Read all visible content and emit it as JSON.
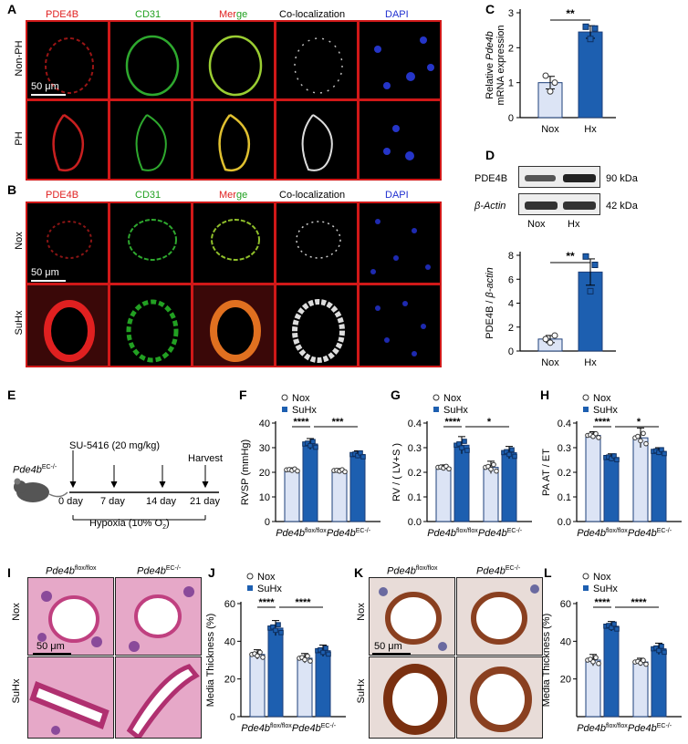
{
  "panels": [
    "A",
    "B",
    "C",
    "D",
    "E",
    "F",
    "G",
    "H",
    "I",
    "J",
    "K",
    "L"
  ],
  "channels": [
    "PDE4B",
    "CD31",
    "Merge",
    "Co-localization",
    "DAPI"
  ],
  "channel_colors": {
    "PDE4B": "#e02020",
    "CD31": "#1fa01f",
    "Merge": "#e02020",
    "Merge_ge": "#1fa01f",
    "Co-localization": "#222222",
    "DAPI": "#2030d0"
  },
  "merge_parts": [
    "Mer",
    "ge"
  ],
  "panelA_rows": [
    "Non-PH",
    "PH"
  ],
  "panelB_rows": [
    "Nox",
    "SuHx"
  ],
  "scale_bar": "50 μm",
  "colors": {
    "nox_fill": "#dce4f5",
    "suhx_fill": "#1d5fb0",
    "frame_red": "#d01818"
  },
  "chart_data": [
    {
      "panel": "C",
      "type": "bar",
      "categories": [
        "Nox",
        "Hx"
      ],
      "values": [
        1.0,
        2.45
      ],
      "errors": [
        0.18,
        0.18
      ],
      "points": [
        [
          1.2,
          0.75,
          1.0
        ],
        [
          2.6,
          2.25,
          2.55
        ]
      ],
      "ylabel_parts": [
        "Relative ",
        "Pde4b"
      ],
      "ylabel2": "mRNA expression",
      "yticks": [
        0,
        1,
        2,
        3
      ],
      "ylim": [
        0,
        3
      ],
      "significance": "**"
    },
    {
      "panel": "D",
      "type": "bar",
      "categories": [
        "Nox",
        "Hx"
      ],
      "values": [
        1.0,
        6.6
      ],
      "errors": [
        0.3,
        1.1
      ],
      "points": [
        [
          1.0,
          0.7,
          1.3
        ],
        [
          7.9,
          5.0,
          7.2
        ]
      ],
      "ylabel_parts": [
        "PDE4B / ",
        "β-actin"
      ],
      "yticks": [
        0,
        2,
        4,
        6,
        8
      ],
      "ylim": [
        0,
        8
      ],
      "significance": "**"
    },
    {
      "panel": "F",
      "type": "bar",
      "ylabel": "RVSP (mmHg)",
      "yticks": [
        0,
        10,
        20,
        30,
        40
      ],
      "ylim": [
        0,
        40
      ],
      "groups": [
        "Pde4b^flox/flox",
        "Pde4b^EC-/-"
      ],
      "series": [
        {
          "name": "Nox",
          "values": [
            21,
            20.7
          ]
        },
        {
          "name": "SuHx",
          "values": [
            31.5,
            27.2
          ]
        }
      ],
      "errors": [
        [
          0.8,
          0.8
        ],
        [
          2.2,
          1.5
        ]
      ],
      "significance": [
        "****",
        "***"
      ]
    },
    {
      "panel": "G",
      "type": "bar",
      "ylabel": "RV / ( LV+S )",
      "yticks": [
        0.0,
        0.1,
        0.2,
        0.3,
        0.4
      ],
      "ylim": [
        0,
        0.4
      ],
      "groups": [
        "Pde4b^flox/flox",
        "Pde4b^EC-/-"
      ],
      "series": [
        {
          "name": "Nox",
          "values": [
            0.22,
            0.22
          ]
        },
        {
          "name": "SuHx",
          "values": [
            0.31,
            0.28
          ]
        }
      ],
      "errors": [
        [
          0.01,
          0.025
        ],
        [
          0.035,
          0.025
        ]
      ],
      "significance": [
        "****",
        "*"
      ]
    },
    {
      "panel": "H",
      "type": "bar",
      "ylabel": "PA AT / ET",
      "yticks": [
        0.0,
        0.1,
        0.2,
        0.3,
        0.4
      ],
      "ylim": [
        0,
        0.4
      ],
      "groups": [
        "Pde4b^flox/flox",
        "Pde4b^EC-/-"
      ],
      "series": [
        {
          "name": "Nox",
          "values": [
            0.35,
            0.34
          ]
        },
        {
          "name": "SuHx",
          "values": [
            0.26,
            0.285
          ]
        }
      ],
      "errors": [
        [
          0.015,
          0.04
        ],
        [
          0.015,
          0.015
        ]
      ],
      "significance": [
        "****",
        "*"
      ]
    },
    {
      "panel": "J",
      "type": "bar",
      "ylabel": "Media Thickness (%)",
      "yticks": [
        0,
        20,
        40,
        60
      ],
      "ylim": [
        0,
        60
      ],
      "groups": [
        "Pde4b^flox/flox",
        "Pde4b^EC-/-"
      ],
      "series": [
        {
          "name": "Nox",
          "values": [
            33,
            31
          ]
        },
        {
          "name": "SuHx",
          "values": [
            47,
            35
          ]
        }
      ],
      "errors": [
        [
          2.5,
          2.5
        ],
        [
          4,
          3
        ]
      ],
      "significance": [
        "****",
        "****"
      ]
    },
    {
      "panel": "L",
      "type": "bar",
      "ylabel": "Media Thickness (%)",
      "yticks": [
        20,
        40,
        60
      ],
      "ylim": [
        0,
        60
      ],
      "groups": [
        "Pde4b^flox/flox",
        "Pde4b^EC-/-"
      ],
      "series": [
        {
          "name": "Nox",
          "values": [
            30,
            29
          ]
        },
        {
          "name": "SuHx",
          "values": [
            48,
            36
          ]
        }
      ],
      "errors": [
        [
          3,
          2
        ],
        [
          2.5,
          3
        ]
      ],
      "significance": [
        "****",
        "****"
      ]
    }
  ],
  "legend": [
    "Nox",
    "SuHx"
  ],
  "genotypes": {
    "base": "Pde4b",
    "flox": "flox/flox",
    "ec": "EC-/-"
  },
  "western": {
    "labels": [
      "PDE4B",
      "β-Actin"
    ],
    "sizes": [
      "90 kDa",
      "42 kDa"
    ],
    "lanes": [
      "Nox",
      "Hx"
    ]
  },
  "timeline": {
    "mouse": "Pde4b",
    "mouse_sup": "EC-/-",
    "drug": "SU-5416 (20 mg/kg)",
    "harvest": "Harvest",
    "days": [
      "0 day",
      "7 day",
      "14 day",
      "21 day"
    ],
    "hypoxia": "Hypoxia (10% O",
    "hypoxia_sub": "2",
    "hypoxia_end": ")"
  },
  "histo_rows": [
    "Nox",
    "SuHx"
  ]
}
